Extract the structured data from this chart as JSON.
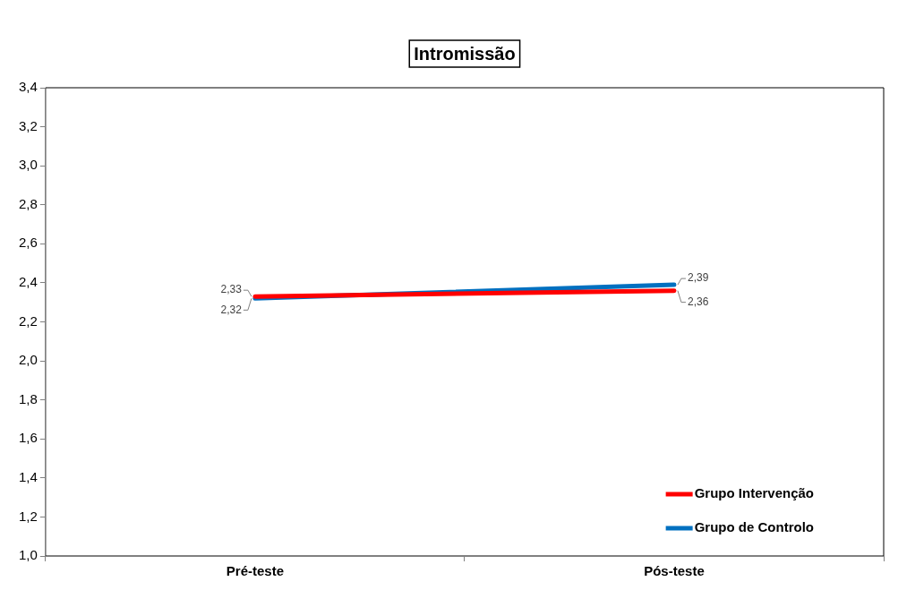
{
  "chart_data": {
    "type": "line",
    "title": "Intromissão",
    "categories": [
      "Pré-teste",
      "Pós-teste"
    ],
    "series": [
      {
        "name": "Grupo Intervenção",
        "color": "#ff0000",
        "values": [
          2.33,
          2.36
        ],
        "value_labels": [
          "2,33",
          "2,36"
        ]
      },
      {
        "name": "Grupo de Controlo",
        "color": "#0070c0",
        "values": [
          2.32,
          2.39
        ],
        "value_labels": [
          "2,32",
          "2,39"
        ]
      }
    ],
    "ylim": [
      1.0,
      3.4
    ],
    "yticks": [
      {
        "value": 1.0,
        "label": "1,0"
      },
      {
        "value": 1.2,
        "label": "1,2"
      },
      {
        "value": 1.4,
        "label": "1,4"
      },
      {
        "value": 1.6,
        "label": "1,6"
      },
      {
        "value": 1.8,
        "label": "1,8"
      },
      {
        "value": 2.0,
        "label": "2,0"
      },
      {
        "value": 2.2,
        "label": "2,2"
      },
      {
        "value": 2.4,
        "label": "2,4"
      },
      {
        "value": 2.6,
        "label": "2,6"
      },
      {
        "value": 2.8,
        "label": "2,8"
      },
      {
        "value": 3.0,
        "label": "3,0"
      },
      {
        "value": 3.2,
        "label": "3,2"
      },
      {
        "value": 3.4,
        "label": "3,4"
      }
    ],
    "grid": false,
    "legend": "bottom right",
    "marker": "none",
    "line_style": "solid"
  }
}
